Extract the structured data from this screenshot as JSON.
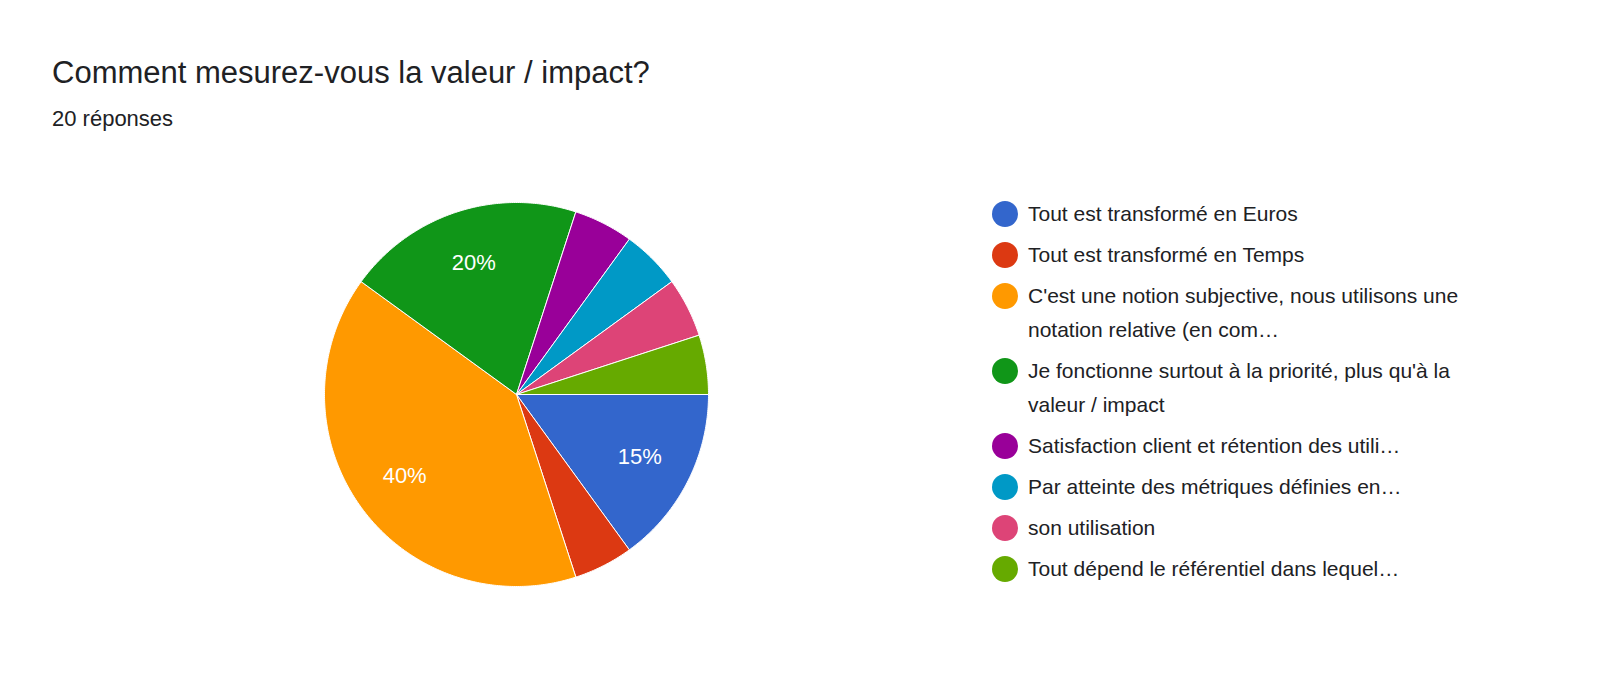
{
  "chart_data": {
    "type": "pie",
    "title": "Comment mesurez-vous la valeur / impact?",
    "subtitle": "20 réponses",
    "categories": [
      "Tout est transformé en Euros",
      "Tout est transformé en Temps",
      "C'est une notion subjective, nous utilisons une notation relative (en com…",
      "Je fonctionne surtout à la priorité, plus qu'à la valeur / impact",
      "Satisfaction client et rétention des utili…",
      "Par atteinte des métriques définies en…",
      "son utilisation",
      "Tout dépend le référentiel dans lequel…"
    ],
    "values": [
      15,
      5,
      40,
      20,
      5,
      5,
      5,
      5
    ],
    "value_labels": [
      "15%",
      null,
      "40%",
      "20%",
      null,
      null,
      null,
      null
    ],
    "colors": [
      "#3366cc",
      "#dc3912",
      "#ff9900",
      "#109618",
      "#990099",
      "#0099c6",
      "#dd4477",
      "#66aa00"
    ],
    "data_labels": true,
    "legend": "right"
  }
}
